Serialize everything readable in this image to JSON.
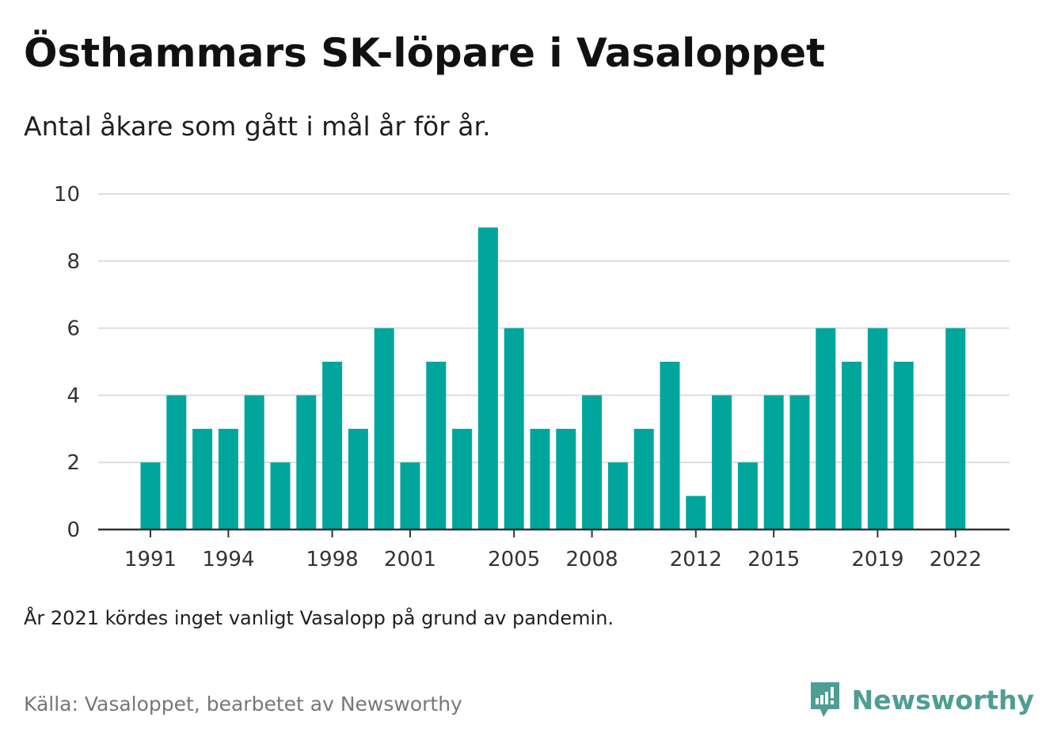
{
  "header": {
    "title": "Östhammars SK-löpare i Vasaloppet",
    "subtitle": "Antal åkare som gått i mål år för år."
  },
  "footer": {
    "note": "År 2021 kördes inget vanligt Vasalopp på grund av pandemin.",
    "source": "Källa: Vasaloppet, bearbetet av Newsworthy",
    "brand": "Newsworthy",
    "brand_icon": "newsworthy-logo-icon"
  },
  "colors": {
    "bar": "#00a69c",
    "brand": "#4d9e93",
    "grid": "#dddddd",
    "axis": "#333333"
  },
  "chart_data": {
    "type": "bar",
    "title": "Östhammars SK-löpare i Vasaloppet",
    "subtitle": "Antal åkare som gått i mål år för år.",
    "xlabel": "",
    "ylabel": "",
    "categories": [
      1991,
      1992,
      1993,
      1994,
      1995,
      1996,
      1997,
      1998,
      1999,
      2000,
      2001,
      2002,
      2003,
      2004,
      2005,
      2006,
      2007,
      2008,
      2009,
      2010,
      2011,
      2012,
      2013,
      2014,
      2015,
      2016,
      2017,
      2018,
      2019,
      2020,
      2021,
      2022
    ],
    "values": [
      2,
      4,
      3,
      3,
      4,
      2,
      4,
      5,
      3,
      6,
      2,
      5,
      3,
      9,
      6,
      3,
      3,
      4,
      2,
      3,
      5,
      1,
      4,
      2,
      4,
      4,
      6,
      5,
      6,
      5,
      null,
      6
    ],
    "x_tick_labels": [
      "1991",
      "1994",
      "1998",
      "2001",
      "2005",
      "2008",
      "2012",
      "2015",
      "2019",
      "2022"
    ],
    "y_ticks": [
      "0",
      "2",
      "4",
      "6",
      "8",
      "10"
    ],
    "ylim": [
      0,
      10
    ],
    "grid": true,
    "legend": "none"
  }
}
